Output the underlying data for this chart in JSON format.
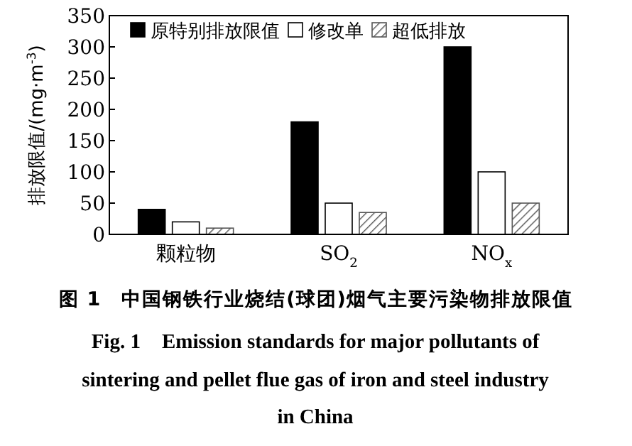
{
  "chart_data": {
    "type": "bar",
    "title": "图 1　中国钢铁行业烧结(球团)烟气主要污染物排放限值",
    "subtitle": "Fig. 1　Emission standards for major pollutants of sintering and pellet flue gas of iron and steel industry in China",
    "ylabel": "排放限值/(mg·m$^{-3}$)",
    "categories": [
      "颗粒物",
      "SO$_{2}$",
      "NO$_{x}$"
    ],
    "series": [
      {
        "name": "原特别排放限值",
        "color": "#000000",
        "values": [
          40,
          180,
          300
        ]
      },
      {
        "name": "修改单",
        "color": "#ffffff",
        "values": [
          20,
          50,
          100
        ]
      },
      {
        "name": "超低排放",
        "color": "#555555",
        "values": [
          10,
          35,
          50
        ]
      }
    ],
    "ylim": [
      0,
      350
    ],
    "yticks": [
      0,
      50,
      100,
      150,
      200,
      250,
      300,
      350
    ],
    "grid": false,
    "legend": "top"
  }
}
